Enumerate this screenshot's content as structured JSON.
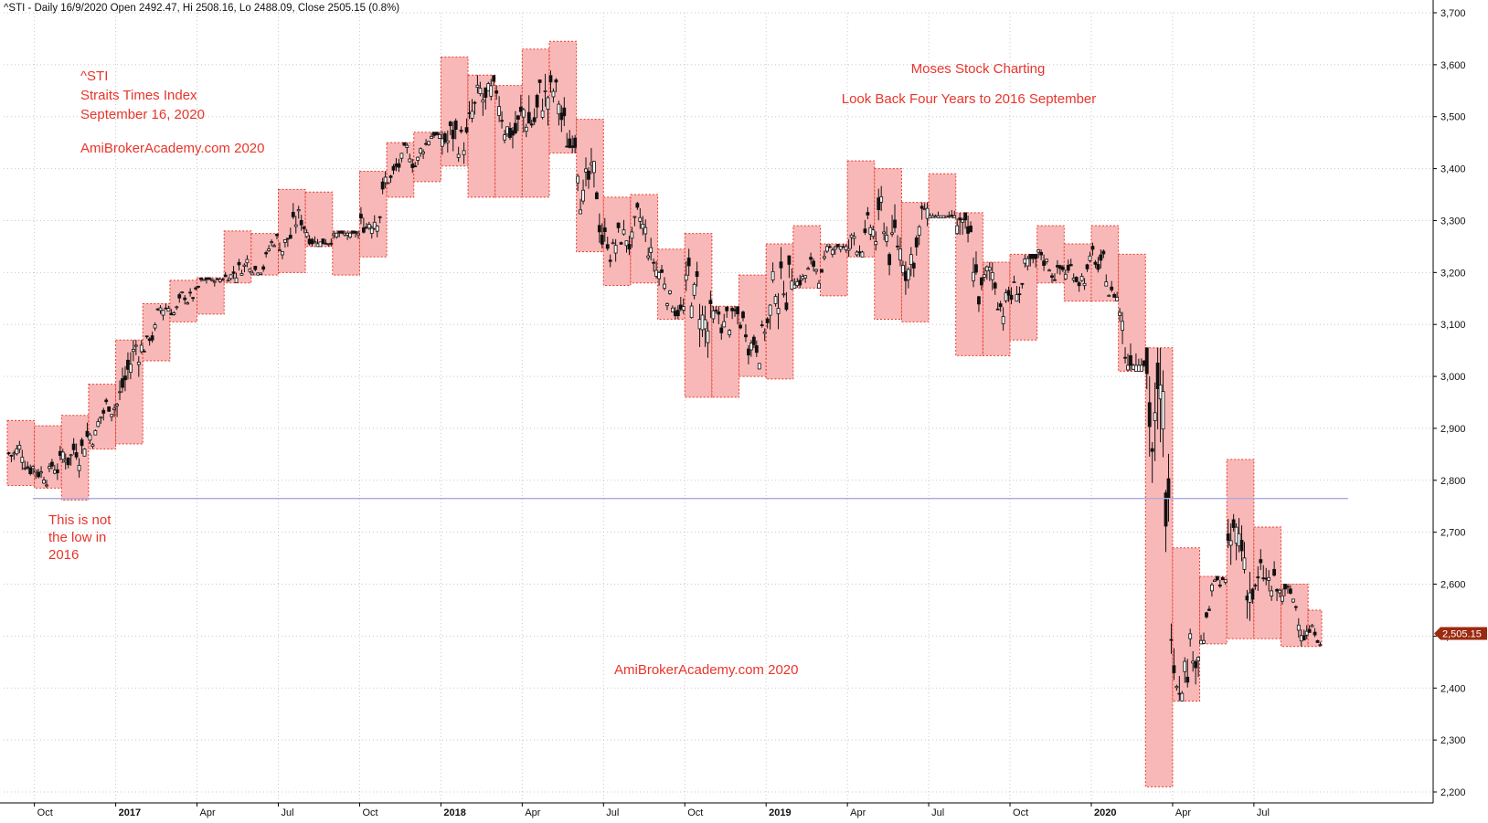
{
  "header": {
    "text": "^STI - Daily 16/9/2020 Open 2492.47, Hi 2508.16, Lo 2488.09, Close 2505.15 (0.8%)"
  },
  "annotations": {
    "symbol": "^STI",
    "name": "Straits Times Index",
    "date": "September 16, 2020",
    "site_top": "AmiBrokerAcademy.com  2020",
    "brand": "Moses Stock Charting",
    "lookback": "Look Back Four Years to 2016 September",
    "note_line1": "This is not",
    "note_line2": "the low in",
    "note_line3": "2016",
    "site_bottom": "AmiBrokerAcademy.com  2020"
  },
  "colors": {
    "annotation_text": "#e8352b",
    "box_fill": "#f9b8b8",
    "box_border": "#e83a2b",
    "candle": "#111111",
    "grid": "#c8c8c8",
    "reference_line": "#a9a9e0",
    "price_marker": "#9c2a10"
  },
  "chart_data": {
    "type": "candlestick",
    "ylim": [
      2190,
      3720
    ],
    "y_ticks": [
      "2,200",
      "2,300",
      "2,400",
      "2,500",
      "2,600",
      "2,700",
      "2,800",
      "2,900",
      "3,000",
      "3,100",
      "3,200",
      "3,300",
      "3,400",
      "3,500",
      "3,600",
      "3,700"
    ],
    "x_tick_labels": [
      "Oct",
      "2017",
      "Apr",
      "Jul",
      "Oct",
      "2018",
      "Apr",
      "Jul",
      "Oct",
      "2019",
      "Apr",
      "Jul",
      "Oct",
      "2020",
      "Apr",
      "Jul"
    ],
    "last_close": 2505.15,
    "last_close_label": "2,505.15",
    "reference_level": 2765,
    "monthly_ranges": [
      {
        "month": "2016-09",
        "high": 2915,
        "low": 2790
      },
      {
        "month": "2016-10",
        "high": 2905,
        "low": 2785
      },
      {
        "month": "2016-11",
        "high": 2925,
        "low": 2762
      },
      {
        "month": "2016-12",
        "high": 2985,
        "low": 2860
      },
      {
        "month": "2017-01",
        "high": 3070,
        "low": 2870
      },
      {
        "month": "2017-02",
        "high": 3140,
        "low": 3030
      },
      {
        "month": "2017-03",
        "high": 3185,
        "low": 3105
      },
      {
        "month": "2017-04",
        "high": 3190,
        "low": 3120
      },
      {
        "month": "2017-05",
        "high": 3280,
        "low": 3180
      },
      {
        "month": "2017-06",
        "high": 3275,
        "low": 3195
      },
      {
        "month": "2017-07",
        "high": 3360,
        "low": 3200
      },
      {
        "month": "2017-08",
        "high": 3355,
        "low": 3250
      },
      {
        "month": "2017-09",
        "high": 3280,
        "low": 3195
      },
      {
        "month": "2017-10",
        "high": 3395,
        "low": 3230
      },
      {
        "month": "2017-11",
        "high": 3450,
        "low": 3345
      },
      {
        "month": "2017-12",
        "high": 3470,
        "low": 3375
      },
      {
        "month": "2018-01",
        "high": 3615,
        "low": 3405
      },
      {
        "month": "2018-02",
        "high": 3580,
        "low": 3345
      },
      {
        "month": "2018-03",
        "high": 3560,
        "low": 3345
      },
      {
        "month": "2018-04",
        "high": 3630,
        "low": 3345
      },
      {
        "month": "2018-05",
        "high": 3645,
        "low": 3430
      },
      {
        "month": "2018-06",
        "high": 3495,
        "low": 3240
      },
      {
        "month": "2018-07",
        "high": 3345,
        "low": 3175
      },
      {
        "month": "2018-08",
        "high": 3350,
        "low": 3180
      },
      {
        "month": "2018-09",
        "high": 3245,
        "low": 3110
      },
      {
        "month": "2018-10",
        "high": 3275,
        "low": 2960
      },
      {
        "month": "2018-11",
        "high": 3135,
        "low": 2960
      },
      {
        "month": "2018-12",
        "high": 3195,
        "low": 3000
      },
      {
        "month": "2019-01",
        "high": 3255,
        "low": 2995
      },
      {
        "month": "2019-02",
        "high": 3290,
        "low": 3170
      },
      {
        "month": "2019-03",
        "high": 3255,
        "low": 3155
      },
      {
        "month": "2019-04",
        "high": 3415,
        "low": 3230
      },
      {
        "month": "2019-05",
        "high": 3400,
        "low": 3110
      },
      {
        "month": "2019-06",
        "high": 3335,
        "low": 3105
      },
      {
        "month": "2019-07",
        "high": 3390,
        "low": 3305
      },
      {
        "month": "2019-08",
        "high": 3315,
        "low": 3040
      },
      {
        "month": "2019-09",
        "high": 3220,
        "low": 3040
      },
      {
        "month": "2019-10",
        "high": 3235,
        "low": 3070
      },
      {
        "month": "2019-11",
        "high": 3290,
        "low": 3180
      },
      {
        "month": "2019-12",
        "high": 3255,
        "low": 3145
      },
      {
        "month": "2020-01",
        "high": 3290,
        "low": 3145
      },
      {
        "month": "2020-02",
        "high": 3235,
        "low": 3010
      },
      {
        "month": "2020-03",
        "high": 3055,
        "low": 2210
      },
      {
        "month": "2020-04",
        "high": 2670,
        "low": 2375
      },
      {
        "month": "2020-05",
        "high": 2615,
        "low": 2485
      },
      {
        "month": "2020-06",
        "high": 2840,
        "low": 2495
      },
      {
        "month": "2020-07",
        "high": 2710,
        "low": 2495
      },
      {
        "month": "2020-08",
        "high": 2600,
        "low": 2480
      },
      {
        "month": "2020-09",
        "high": 2550,
        "low": 2480
      }
    ]
  }
}
